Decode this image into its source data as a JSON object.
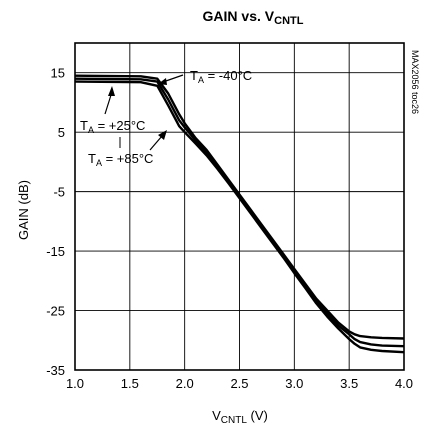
{
  "chart_data": {
    "type": "line",
    "title": {
      "main": "GAIN vs. V",
      "sub": "CNTL"
    },
    "xlabel": {
      "main": "V",
      "sub": "CNTL",
      "suffix": " (V)"
    },
    "ylabel": "GAIN (dB)",
    "side_note": "MAX2056 toc26",
    "xlim": [
      1.0,
      4.0
    ],
    "ylim": [
      -35,
      20
    ],
    "x_ticks": [
      "1.0",
      "1.5",
      "2.0",
      "2.5",
      "3.0",
      "3.5",
      "4.0"
    ],
    "y_ticks": [
      "15",
      "5",
      "-5",
      "-15",
      "-25",
      "-35"
    ],
    "grid": true,
    "series": [
      {
        "name": "TA = -40°C",
        "x": [
          1.0,
          1.6,
          1.75,
          1.85,
          1.95,
          2.0,
          2.1,
          2.2,
          2.3,
          2.4,
          2.5,
          2.6,
          2.7,
          2.8,
          2.9,
          3.0,
          3.1,
          3.2,
          3.3,
          3.4,
          3.5,
          3.55,
          3.6,
          3.7,
          3.8,
          4.0
        ],
        "y": [
          14.5,
          14.4,
          14.0,
          11.5,
          8.0,
          6.5,
          4.0,
          2.0,
          -0.5,
          -3.0,
          -5.5,
          -8.0,
          -10.5,
          -13.0,
          -15.5,
          -18.0,
          -20.5,
          -23.0,
          -25.0,
          -27.0,
          -28.5,
          -29.0,
          -29.3,
          -29.5,
          -29.6,
          -29.7
        ]
      },
      {
        "name": "TA = +25°C",
        "x": [
          1.0,
          1.6,
          1.75,
          1.85,
          1.95,
          2.0,
          2.1,
          2.2,
          2.3,
          2.4,
          2.5,
          2.6,
          2.7,
          2.8,
          2.9,
          3.0,
          3.1,
          3.2,
          3.3,
          3.4,
          3.5,
          3.55,
          3.6,
          3.7,
          3.8,
          4.0
        ],
        "y": [
          14.0,
          13.9,
          13.5,
          10.5,
          7.0,
          5.8,
          3.6,
          1.6,
          -0.8,
          -3.3,
          -5.8,
          -8.3,
          -10.8,
          -13.3,
          -15.8,
          -18.4,
          -20.9,
          -23.4,
          -25.5,
          -27.5,
          -29.0,
          -29.8,
          -30.3,
          -30.7,
          -30.9,
          -31.0
        ]
      },
      {
        "name": "TA = +85°C",
        "x": [
          1.0,
          1.6,
          1.75,
          1.85,
          1.95,
          2.0,
          2.1,
          2.2,
          2.3,
          2.4,
          2.5,
          2.6,
          2.7,
          2.8,
          2.9,
          3.0,
          3.1,
          3.2,
          3.3,
          3.4,
          3.5,
          3.55,
          3.6,
          3.7,
          3.8,
          4.0
        ],
        "y": [
          13.5,
          13.4,
          12.8,
          9.5,
          6.0,
          5.0,
          3.1,
          1.1,
          -1.2,
          -3.6,
          -6.1,
          -8.6,
          -11.1,
          -13.6,
          -16.1,
          -18.7,
          -21.2,
          -23.8,
          -26.0,
          -28.0,
          -29.8,
          -30.6,
          -31.2,
          -31.6,
          -31.8,
          -32.0
        ]
      }
    ],
    "annotations": [
      {
        "text": {
          "t": "T",
          "sub": "A",
          "rest": " = -40°C"
        }
      },
      {
        "text": {
          "t": "T",
          "sub": "A",
          "rest": " = +25°C"
        }
      },
      {
        "text": {
          "t": "T",
          "sub": "A",
          "rest": " = +85°C"
        }
      }
    ]
  }
}
